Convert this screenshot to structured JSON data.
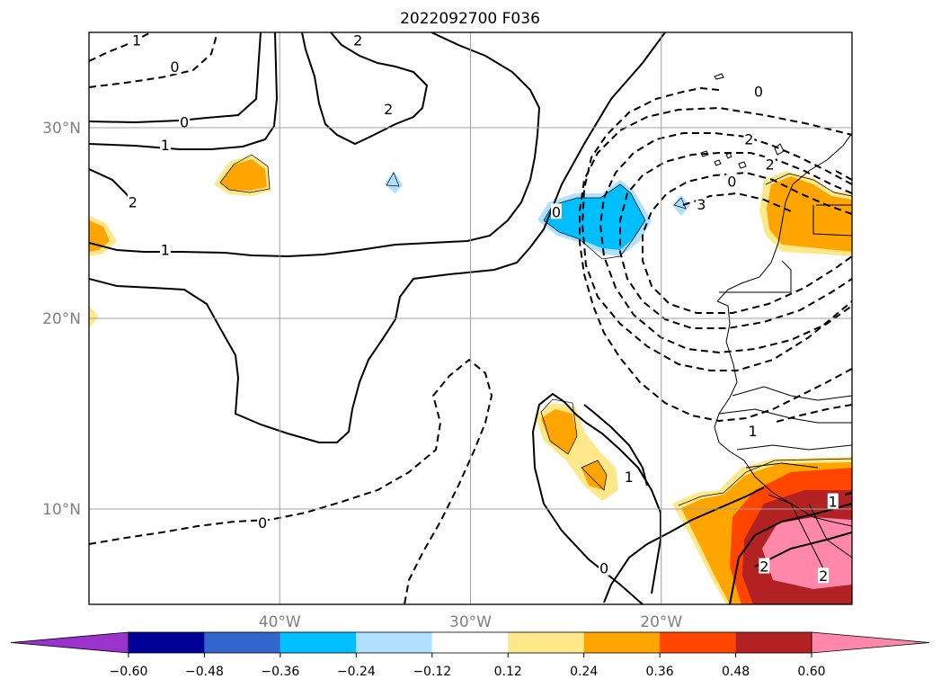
{
  "title": "2022092700 F036",
  "map": {
    "lon_range": [
      -50,
      -10
    ],
    "lat_range": [
      5,
      35
    ],
    "lon_ticks": [
      {
        "value": -40,
        "label": "40°W"
      },
      {
        "value": -30,
        "label": "30°W"
      },
      {
        "value": -20,
        "label": "20°W"
      }
    ],
    "lat_ticks": [
      {
        "value": 30,
        "label": "30°N"
      },
      {
        "value": 20,
        "label": "20°N"
      },
      {
        "value": 10,
        "label": "10°N"
      }
    ],
    "grid": true,
    "contour_labels": [
      {
        "text": "1",
        "lon": -47.5,
        "lat": 34.6
      },
      {
        "text": "0",
        "lon": -45.5,
        "lat": 33.2
      },
      {
        "text": "0",
        "lon": -45.0,
        "lat": 30.3
      },
      {
        "text": "1",
        "lon": -46.0,
        "lat": 29.1
      },
      {
        "text": "2",
        "lon": -47.7,
        "lat": 26.1
      },
      {
        "text": "1",
        "lon": -46.0,
        "lat": 23.6
      },
      {
        "text": "2",
        "lon": -35.9,
        "lat": 34.6
      },
      {
        "text": "2",
        "lon": -34.3,
        "lat": 31.0
      },
      {
        "text": "0",
        "lon": -25.5,
        "lat": 25.6
      },
      {
        "text": "0",
        "lon": -14.9,
        "lat": 31.9
      },
      {
        "text": "2",
        "lon": -15.4,
        "lat": 29.4
      },
      {
        "text": "2",
        "lon": -14.3,
        "lat": 28.1
      },
      {
        "text": "3",
        "lon": -17.9,
        "lat": 26.0
      },
      {
        "text": "0",
        "lon": -16.3,
        "lat": 27.2
      },
      {
        "text": "1",
        "lon": -15.2,
        "lat": 14.1
      },
      {
        "text": "1",
        "lon": -21.7,
        "lat": 11.7
      },
      {
        "text": "0",
        "lon": -23.0,
        "lat": 6.9
      },
      {
        "text": "0",
        "lon": -40.9,
        "lat": 9.3
      },
      {
        "text": "1",
        "lon": -11.0,
        "lat": 10.4
      },
      {
        "text": "2",
        "lon": -14.6,
        "lat": 7.0
      },
      {
        "text": "2",
        "lon": -11.5,
        "lat": 6.5
      }
    ]
  },
  "colorbar": {
    "colors": [
      "#9933cc",
      "#000099",
      "#3366cc",
      "#00bfff",
      "#b0e0ff",
      "#ffffff",
      "#ffe88a",
      "#ffa500",
      "#ff4500",
      "#b22222",
      "#ff88aa"
    ],
    "tick_labels": [
      "−0.60",
      "−0.48",
      "−0.36",
      "−0.24",
      "−0.12",
      "0.12",
      "0.24",
      "0.36",
      "0.48",
      "0.60"
    ],
    "levels": [
      -0.6,
      -0.48,
      -0.36,
      -0.24,
      -0.12,
      0.12,
      0.24,
      0.36,
      0.48,
      0.6
    ],
    "extend": "both"
  },
  "legend": null
}
